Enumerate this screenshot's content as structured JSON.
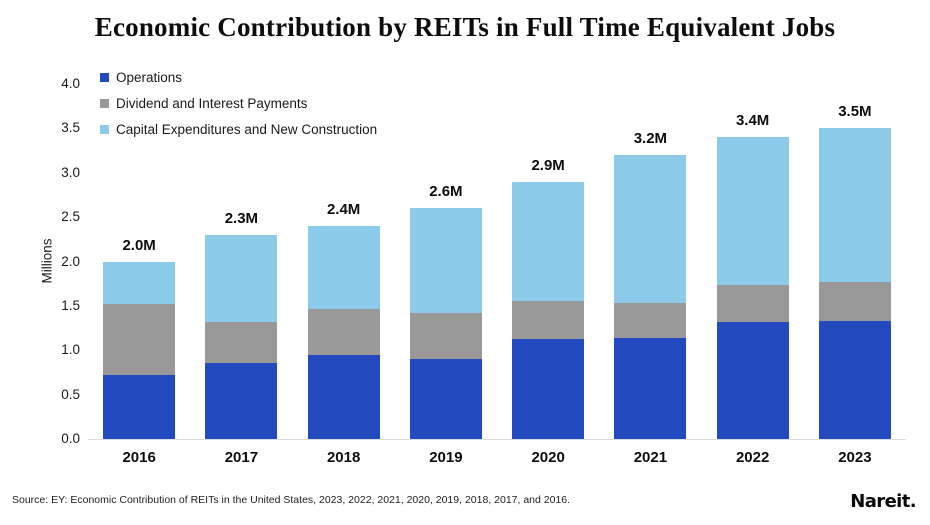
{
  "title": "Economic Contribution by REITs in Full Time Equivalent Jobs",
  "footer": {
    "source": "Source: EY: Economic Contribution of REITs in the United States, 2023, 2022, 2021, 2020, 2019, 2018, 2017, and 2016.",
    "logo": "Nareit."
  },
  "colors": {
    "operations": "#2249BE",
    "dividends": "#999999",
    "capex": "#8CCAE9",
    "axis_line": "#dcdcdc"
  },
  "chart_data": {
    "type": "bar",
    "stacked": true,
    "title": "Economic Contribution by REITs in Full Time Equivalent Jobs",
    "xlabel": "",
    "ylabel": "Millions",
    "ylim": [
      0,
      4.0
    ],
    "yticks": [
      "0.0",
      "0.5",
      "1.0",
      "1.5",
      "2.0",
      "2.5",
      "3.0",
      "3.5",
      "4.0"
    ],
    "grid": false,
    "legend_position": "top-left",
    "categories": [
      "2016",
      "2017",
      "2018",
      "2019",
      "2020",
      "2021",
      "2022",
      "2023"
    ],
    "series": [
      {
        "name": "Operations",
        "color": "#2249BE",
        "values": [
          0.72,
          0.86,
          0.95,
          0.9,
          1.13,
          1.14,
          1.32,
          1.33
        ]
      },
      {
        "name": "Dividend and Interest Payments",
        "color": "#999999",
        "values": [
          0.8,
          0.46,
          0.51,
          0.52,
          0.42,
          0.39,
          0.42,
          0.44
        ]
      },
      {
        "name": "Capital Expenditures and New Construction",
        "color": "#8CCAE9",
        "values": [
          0.48,
          0.98,
          0.94,
          1.18,
          1.35,
          1.67,
          1.66,
          1.73
        ]
      }
    ],
    "totals": [
      "2.0M",
      "2.3M",
      "2.4M",
      "2.6M",
      "2.9M",
      "3.2M",
      "3.4M",
      "3.5M"
    ]
  }
}
